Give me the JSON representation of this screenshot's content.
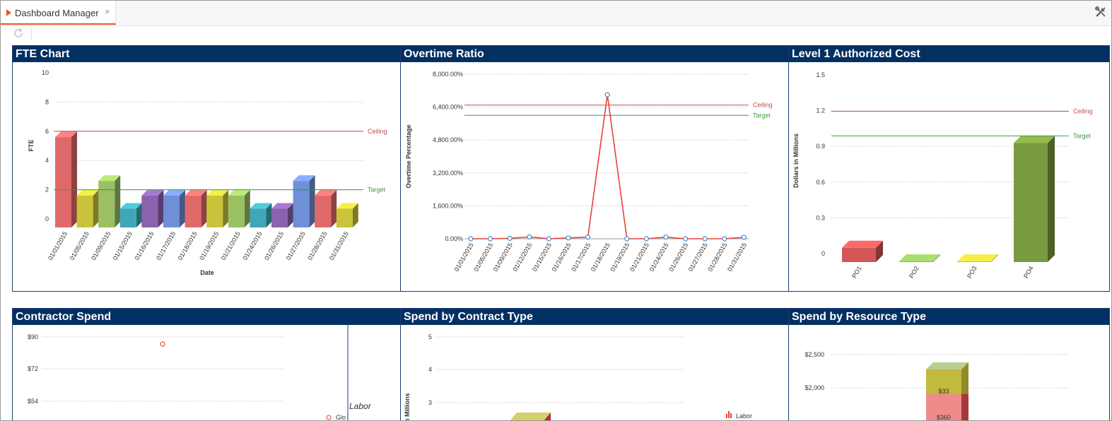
{
  "tab": {
    "label": "Dashboard Manager",
    "close": "×"
  },
  "colors": {
    "accent": "#e8572d",
    "header": "#033063",
    "ceiling": "#c0504d",
    "target": "#3a9a3a"
  },
  "panels": {
    "fte": {
      "title": "FTE Chart",
      "chart_data": {
        "type": "bar",
        "ylabel": "FTE",
        "xlabel": "Date",
        "yticks": [
          "10",
          "8",
          "6",
          "4",
          "2",
          "0"
        ],
        "ylim": [
          0,
          10
        ],
        "categories": [
          "01/01/2015",
          "01/05/2015",
          "01/09/2015",
          "01/15/2015",
          "01/16/2015",
          "01/17/2015",
          "01/18/2015",
          "01/19/2015",
          "01/21/2015",
          "01/24/2015",
          "01/26/2015",
          "01/27/2015",
          "01/28/2015",
          "01/31/2015"
        ],
        "values": [
          5.6,
          1.6,
          2.6,
          0.7,
          1.6,
          1.6,
          1.6,
          1.6,
          1.6,
          0.7,
          0.7,
          2.6,
          1.6,
          0.7
        ],
        "colors": [
          "#e06a6a",
          "#c9c43b",
          "#9ac063",
          "#3fa7b8",
          "#8a63ad",
          "#6f8fd6",
          "#e06a6a",
          "#c9c43b",
          "#9ac063",
          "#3fa7b8",
          "#8a63ad",
          "#6f8fd6",
          "#e06a6a",
          "#c9c43b"
        ],
        "ceiling": {
          "label": "Ceiling",
          "value": 6
        },
        "target": {
          "label": "Target",
          "value": 2
        }
      }
    },
    "overtime": {
      "title": "Overtime Ratio",
      "chart_data": {
        "type": "line",
        "ylabel": "Overtime Percentage",
        "yticks": [
          "8,000.00%",
          "6,400.00%",
          "4,800.00%",
          "3,200.00%",
          "1,600.00%",
          "0.00%"
        ],
        "ylim": [
          0,
          8000
        ],
        "categories": [
          "01/01/2015",
          "01/05/2015",
          "01/09/2015",
          "01/12/2015",
          "01/15/2015",
          "01/16/2015",
          "01/17/2015",
          "01/18/2015",
          "01/19/2015",
          "01/21/2015",
          "01/24/2015",
          "01/26/2015",
          "01/27/2015",
          "01/28/2015",
          "01/31/2015"
        ],
        "values": [
          0,
          0,
          20,
          90,
          0,
          40,
          80,
          7000,
          0,
          0,
          80,
          0,
          0,
          0,
          70
        ],
        "ceiling": {
          "label": "Ceiling",
          "value": 6500
        },
        "target": {
          "label": "Target",
          "value": 6000
        }
      }
    },
    "l1cost": {
      "title": "Level 1 Authorized Cost",
      "chart_data": {
        "type": "bar",
        "ylabel": "Dollars in Millions",
        "yticks": [
          "1.5",
          "1.2",
          "0.9",
          "0.6",
          "0.3",
          "0"
        ],
        "ylim": [
          0,
          1.5
        ],
        "categories": [
          "PO1",
          "PO2",
          "PO3",
          "PO4"
        ],
        "values": [
          0.12,
          0,
          0,
          1.0
        ],
        "colors": [
          "#d35757",
          "#8db55a",
          "#c9c43b",
          "#7a9a3f"
        ],
        "ceiling": {
          "label": "Ceiling",
          "value": 1.2
        },
        "target": {
          "label": "Target",
          "value": 1.0
        }
      }
    },
    "contractor": {
      "title": "Contractor Spend",
      "chart_data": {
        "type": "scatter",
        "yticks": [
          "$90",
          "$72",
          "$54"
        ],
        "points": [
          {
            "y": 86
          }
        ],
        "legend_title": "Labor",
        "legend_item": "Glo"
      }
    },
    "contract_type": {
      "title": "Spend by Contract Type",
      "chart_data": {
        "type": "bar",
        "ylabel": "n Millions",
        "yticks": [
          "5",
          "4",
          "3"
        ],
        "legend_item": "Labor"
      }
    },
    "resource_type": {
      "title": "Spend by Resource Type",
      "chart_data": {
        "type": "bar",
        "yticks": [
          "$2,500",
          "$2,000"
        ],
        "data_labels": [
          "$33",
          "$360"
        ]
      }
    }
  }
}
